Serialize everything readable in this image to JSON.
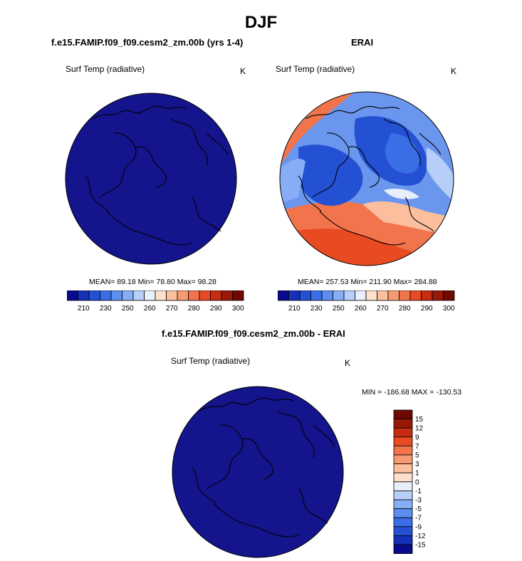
{
  "title": "DJF",
  "left_panel": {
    "title": "f.e15.FAMIP.f09_f09.cesm2_zm.00b (yrs 1-4)",
    "variable": "Surf Temp (radiative)",
    "units": "K",
    "stats": "MEAN=  89.18  Min=  78.80  Max=  98.28"
  },
  "right_panel": {
    "title": "ERAI",
    "variable": "Surf Temp (radiative)",
    "units": "K",
    "stats": "MEAN= 257.53  Min= 211.90  Max= 284.88"
  },
  "bottom_panel": {
    "title": "f.e15.FAMIP.f09_f09.cesm2_zm.00b - ERAI",
    "variable": "Surf Temp (radiative)",
    "units": "K",
    "stats": "MIN = -186.68 MAX = -130.53"
  },
  "colorbar_top": {
    "colors": [
      "#0a0a8c",
      "#1431b8",
      "#2450d4",
      "#3a6ee6",
      "#5b8ef0",
      "#86adf5",
      "#b6cef8",
      "#e8eefb",
      "#fde0cc",
      "#fbbf9e",
      "#f79a72",
      "#f2744c",
      "#e84a22",
      "#c52c12",
      "#9a1808",
      "#6e0a02"
    ],
    "tick_labels": [
      "210",
      "230",
      "250",
      "260",
      "270",
      "280",
      "290",
      "300"
    ]
  },
  "colorbar_diff": {
    "colors": [
      "#0a0a8c",
      "#1431b8",
      "#2450d4",
      "#3a6ee6",
      "#5b8ef0",
      "#86adf5",
      "#b6cef8",
      "#e8eefb",
      "#fde0cc",
      "#fbbf9e",
      "#f79a72",
      "#f2744c",
      "#e84a22",
      "#c52c12",
      "#9a1808",
      "#6e0a02"
    ],
    "tick_labels": [
      "15",
      "12",
      "9",
      "7",
      "5",
      "3",
      "1",
      "0",
      "-1",
      "-3",
      "-5",
      "-7",
      "-9",
      "-12",
      "-15"
    ]
  },
  "colors": {
    "model_fill": "#14148c",
    "coast": "#000000"
  }
}
